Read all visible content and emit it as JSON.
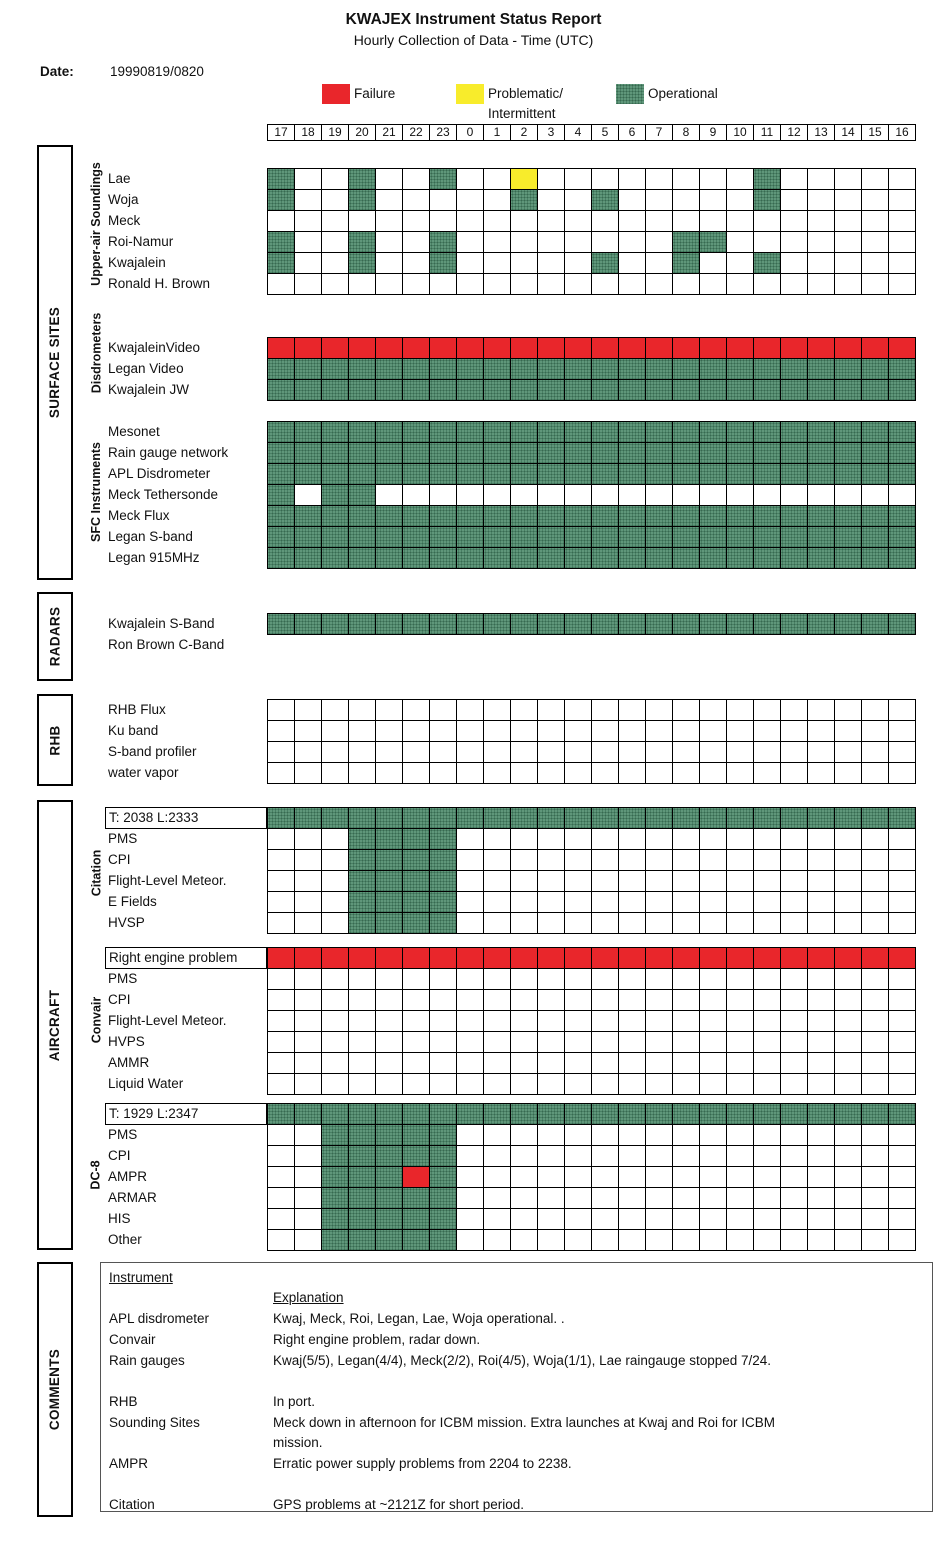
{
  "title": "KWAJEX Instrument Status Report",
  "subtitle": "Hourly Collection of Data - Time (UTC)",
  "date": {
    "label": "Date:",
    "value": "19990819/0820"
  },
  "legend": {
    "failure": {
      "label": "Failure",
      "color": "#e9262b"
    },
    "problematic": {
      "label": "Problematic/\nIntermittent",
      "color": "#f8ec2b"
    },
    "operational": {
      "label": "Operational",
      "color": "#4e8a6b"
    }
  },
  "sidebar": {
    "surface_sites": "SURFACE SITES",
    "radars": "RADARS",
    "rhb": "RHB",
    "aircraft": "AIRCRAFT",
    "comments": "COMMENTS",
    "upper_air": "Upper-air Soundings",
    "disdrometers": "Disdrometers",
    "sfc_instruments": "SFC Instruments",
    "citation": "Citation",
    "convair": "Convair",
    "dc8": "DC-8"
  },
  "grid": {
    "hours": [
      "17",
      "18",
      "19",
      "20",
      "21",
      "22",
      "23",
      "0",
      "1",
      "2",
      "3",
      "4",
      "5",
      "6",
      "7",
      "8",
      "9",
      "10",
      "11",
      "12",
      "13",
      "14",
      "15",
      "16"
    ],
    "cell_colors": {
      "G": "#4e8a6b",
      "R": "#e9262b",
      "Y": "#f8ec2b",
      ".": "#ffffff"
    },
    "state_meaning": {
      "G": "Operational",
      "R": "Failure",
      "Y": "Problematic/Intermittent",
      ".": "No data"
    },
    "blocks": [
      {
        "id": "soundings",
        "rows": [
          {
            "label": "Lae",
            "cells": "G..G..G..Y........G....."
          },
          {
            "label": "Woja",
            "cells": "G..G.....G..G.....G....."
          },
          {
            "label": "Meck",
            "cells": "........................"
          },
          {
            "label": "Roi-Namur",
            "cells": "G..G..G........GG......."
          },
          {
            "label": "Kwajalein",
            "cells": "G..G..G.....G..G..G....."
          },
          {
            "label": "Ronald H. Brown",
            "cells": "........................"
          }
        ]
      },
      {
        "id": "disdrometers",
        "rows": [
          {
            "label": "KwajaleinVideo",
            "cells": "RRRRRRRRRRRRRRRRRRRRRRRR"
          },
          {
            "label": "Legan Video",
            "cells": "GGGGGGGGGGGGGGGGGGGGGGGG"
          },
          {
            "label": "Kwajalein JW",
            "cells": "GGGGGGGGGGGGGGGGGGGGGGGG"
          }
        ]
      },
      {
        "id": "sfc",
        "rows": [
          {
            "label": "Mesonet",
            "cells": "GGGGGGGGGGGGGGGGGGGGGGGG"
          },
          {
            "label": "Rain gauge network",
            "cells": "GGGGGGGGGGGGGGGGGGGGGGGG"
          },
          {
            "label": "APL Disdrometer",
            "cells": "GGGGGGGGGGGGGGGGGGGGGGGG"
          },
          {
            "label": "Meck Tethersonde",
            "cells": "G.GG...................."
          },
          {
            "label": "Meck Flux",
            "cells": "GGGGGGGGGGGGGGGGGGGGGGGG"
          },
          {
            "label": "Legan S-band",
            "cells": "GGGGGGGGGGGGGGGGGGGGGGGG"
          },
          {
            "label": "Legan 915MHz",
            "cells": "GGGGGGGGGGGGGGGGGGGGGGGG"
          }
        ]
      },
      {
        "id": "radars",
        "rows": [
          {
            "label": "Kwajalein S-Band",
            "cells": "GGGGGGGGGGGGGGGGGGGGGGGG"
          },
          {
            "label": "Ron Brown C-Band",
            "cells": null
          }
        ]
      },
      {
        "id": "rhb",
        "rows": [
          {
            "label": "RHB Flux",
            "cells": "........................"
          },
          {
            "label": "Ku band",
            "cells": "........................"
          },
          {
            "label": "S-band profiler",
            "cells": "........................"
          },
          {
            "label": "water vapor",
            "cells": "........................"
          }
        ]
      },
      {
        "id": "citation",
        "rows": [
          {
            "label": "T: 2038  L:2333",
            "boxed": true,
            "cells": "GGGGGGGGGGGGGGGGGGGGGGGG"
          },
          {
            "label": "PMS",
            "cells": "...GGGG................."
          },
          {
            "label": "CPI",
            "cells": "...GGGG................."
          },
          {
            "label": "Flight-Level Meteor.",
            "cells": "...GGGG................."
          },
          {
            "label": "E Fields",
            "cells": "...GGGG................."
          },
          {
            "label": "HVSP",
            "cells": "...GGGG................."
          }
        ]
      },
      {
        "id": "convair",
        "rows": [
          {
            "label": "Right engine problem",
            "boxed": true,
            "cells": "RRRRRRRRRRRRRRRRRRRRRRRR"
          },
          {
            "label": "PMS",
            "cells": "........................"
          },
          {
            "label": "CPI",
            "cells": "........................"
          },
          {
            "label": "Flight-Level Meteor.",
            "cells": "........................"
          },
          {
            "label": "HVPS",
            "cells": "........................"
          },
          {
            "label": "AMMR",
            "cells": "........................"
          },
          {
            "label": "Liquid Water",
            "cells": "........................"
          }
        ]
      },
      {
        "id": "dc8",
        "rows": [
          {
            "label": "T: 1929  L:2347",
            "boxed": true,
            "cells": "GGGGGGGGGGGGGGGGGGGGGGGG"
          },
          {
            "label": "PMS",
            "cells": "..GGGGG................."
          },
          {
            "label": "CPI",
            "cells": "..GGGGG................."
          },
          {
            "label": "AMPR",
            "cells": "..GGGRG................."
          },
          {
            "label": "ARMAR",
            "cells": "..GGGGG................."
          },
          {
            "label": "HIS",
            "cells": "..GGGGG................."
          },
          {
            "label": "Other",
            "cells": "..GGGGG................."
          }
        ]
      }
    ]
  },
  "comments": {
    "header": {
      "instrument": "Instrument",
      "explanation": "Explanation"
    },
    "rows": [
      {
        "instrument": "APL disdrometer",
        "explanation": "Kwaj, Meck, Roi, Legan, Lae, Woja operational. ."
      },
      {
        "instrument": "Convair",
        "explanation": "Right engine problem, radar down."
      },
      {
        "instrument": "Rain gauges",
        "explanation": "Kwaj(5/5), Legan(4/4), Meck(2/2), Roi(4/5), Woja(1/1), Lae raingauge stopped 7/24.",
        "gap_after": true
      },
      {
        "instrument": "RHB",
        "explanation": "In port."
      },
      {
        "instrument": "Sounding Sites",
        "explanation": "Meck down in afternoon for ICBM mission. Extra launches at Kwaj and Roi  for ICBM\nmission."
      },
      {
        "instrument": "AMPR",
        "explanation": "Erratic power supply problems from 2204 to 2238.",
        "gap_after": true
      },
      {
        "instrument": "Citation",
        "explanation": "GPS problems at ~2121Z for short period."
      }
    ]
  }
}
